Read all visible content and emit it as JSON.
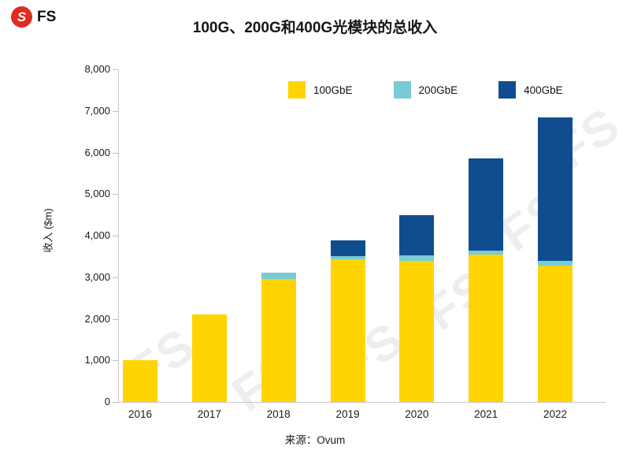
{
  "header": {
    "logo_text": "FS",
    "logo_glyph": "S",
    "logo_color": "#E02B20"
  },
  "watermark": {
    "text": "FS"
  },
  "chart_data": {
    "type": "bar",
    "stacked": true,
    "title": "100G、200G和400G光模块的总收入",
    "ylabel": "收入 ($m)",
    "source": "来源：Ovum",
    "categories": [
      "2016",
      "2017",
      "2018",
      "2019",
      "2020",
      "2021",
      "2022"
    ],
    "series": [
      {
        "name": "100GbE",
        "color": "#FFD400",
        "values": [
          1000,
          2100,
          2950,
          3430,
          3400,
          3540,
          3280
        ]
      },
      {
        "name": "200GbE",
        "color": "#79CBD5",
        "values": [
          0,
          0,
          150,
          80,
          120,
          100,
          120
        ]
      },
      {
        "name": "400GbE",
        "color": "#0F4D8F",
        "values": [
          0,
          0,
          0,
          370,
          980,
          2210,
          3450
        ]
      }
    ],
    "totals": [
      1000,
      2100,
      3100,
      3880,
      4500,
      5850,
      6850
    ],
    "ylim": [
      0,
      8000
    ],
    "ytick_step": 1000,
    "ytick_labels": [
      "0",
      "1,000",
      "2,000",
      "3,000",
      "4,000",
      "5,000",
      "6,000",
      "7,000",
      "8,000"
    ],
    "grid": false,
    "legend_position": "top-inside"
  }
}
